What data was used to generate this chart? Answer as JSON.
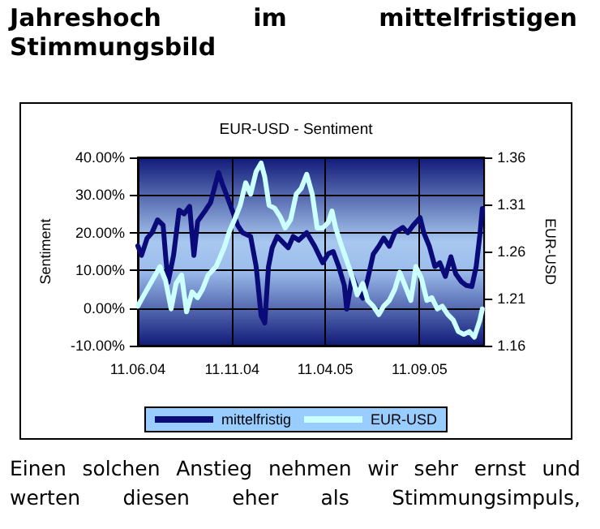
{
  "chart_data": {
    "type": "line",
    "title": "Jahreshoch im mittelfristigen Stimmungsbild",
    "subtitle": "EUR-USD - Sentiment",
    "ylabel": "Sentiment",
    "y2label": "EUR-USD",
    "annotations": [
      "Einen solchen Anstieg nehmen wir sehr ernst und werten diesen eher als Stimmungsimpuls,"
    ],
    "series": [
      {
        "name": "mittelfristig",
        "color": "#0a0a78",
        "x": [
          "2004-06-11",
          "2004-06-17",
          "2004-06-26",
          "2004-07-04",
          "2004-07-13",
          "2004-07-22",
          "2004-07-26",
          "2004-07-30",
          "2004-08-08",
          "2004-08-17",
          "2004-08-25",
          "2004-09-03",
          "2004-09-10",
          "2004-09-16",
          "2004-09-29",
          "2004-10-07",
          "2004-10-20",
          "2004-10-26",
          "2004-11-02",
          "2004-11-11",
          "2004-11-20",
          "2004-11-28",
          "2004-12-11",
          "2004-12-20",
          "2004-12-28",
          "2005-01-03",
          "2005-01-09",
          "2005-01-15",
          "2005-01-23",
          "2005-02-01",
          "2005-02-10",
          "2005-02-18",
          "2005-02-27",
          "2005-03-12",
          "2005-03-25",
          "2005-04-07",
          "2005-04-16",
          "2005-04-24",
          "2005-05-03",
          "2005-05-12",
          "2005-05-16",
          "2005-05-25",
          "2005-06-02",
          "2005-06-11",
          "2005-06-19",
          "2005-06-28",
          "2005-07-07",
          "2005-07-15",
          "2005-07-24",
          "2005-08-02",
          "2005-08-15",
          "2005-08-23",
          "2005-09-01",
          "2005-09-12",
          "2005-09-18",
          "2005-09-27",
          "2005-10-06",
          "2005-10-14",
          "2005-10-23",
          "2005-11-01",
          "2005-11-09",
          "2005-11-18",
          "2005-11-26",
          "2005-12-05",
          "2005-12-12",
          "2005-12-18",
          "2005-12-22"
        ],
        "values": [
          16.5,
          14,
          18.5,
          20,
          23.4,
          22,
          14,
          6.8,
          14,
          26,
          25,
          27,
          14,
          23,
          26,
          28,
          36,
          33,
          30,
          26,
          22,
          20,
          19,
          11,
          -2,
          -4,
          11,
          16,
          19,
          17.5,
          16,
          19,
          18,
          20,
          16.4,
          12,
          14.4,
          15,
          11,
          6,
          -0.3,
          8.4,
          5,
          2.6,
          7.7,
          14.3,
          16.4,
          18.6,
          16.4,
          20,
          21.4,
          20,
          22,
          24,
          20,
          16.4,
          11,
          12,
          8.4,
          13.6,
          9,
          7,
          6,
          5.7,
          11,
          19.4,
          26.4
        ]
      },
      {
        "name": "EUR-USD",
        "color": "#ccffff",
        "axis": "y2",
        "x": [
          "2004-06-11",
          "2004-06-21",
          "2004-07-04",
          "2004-07-17",
          "2004-07-26",
          "2004-08-04",
          "2004-08-12",
          "2004-08-21",
          "2004-08-29",
          "2004-09-07",
          "2004-09-16",
          "2004-09-24",
          "2004-10-03",
          "2004-10-16",
          "2004-10-29",
          "2004-11-07",
          "2004-11-15",
          "2004-11-24",
          "2004-12-03",
          "2004-12-11",
          "2004-12-20",
          "2004-12-28",
          "2005-01-03",
          "2005-01-10",
          "2005-01-19",
          "2005-01-28",
          "2005-02-05",
          "2005-02-14",
          "2005-02-23",
          "2005-03-03",
          "2005-03-12",
          "2005-03-21",
          "2005-03-29",
          "2005-04-07",
          "2005-04-16",
          "2005-04-22",
          "2005-04-28",
          "2005-05-07",
          "2005-05-16",
          "2005-05-24",
          "2005-06-02",
          "2005-06-11",
          "2005-06-19",
          "2005-06-28",
          "2005-07-07",
          "2005-07-15",
          "2005-07-24",
          "2005-08-02",
          "2005-08-10",
          "2005-08-19",
          "2005-08-28",
          "2005-09-05",
          "2005-09-14",
          "2005-09-23",
          "2005-10-01",
          "2005-10-10",
          "2005-10-18",
          "2005-10-27",
          "2005-11-05",
          "2005-11-13",
          "2005-11-22",
          "2005-12-01",
          "2005-12-09",
          "2005-12-18",
          "2005-12-22"
        ],
        "values": [
          1.202,
          1.214,
          1.229,
          1.244,
          1.229,
          1.199,
          1.226,
          1.235,
          1.196,
          1.217,
          1.211,
          1.22,
          1.235,
          1.244,
          1.264,
          1.282,
          1.294,
          1.309,
          1.333,
          1.321,
          1.345,
          1.354,
          1.339,
          1.309,
          1.306,
          1.297,
          1.285,
          1.294,
          1.321,
          1.327,
          1.342,
          1.321,
          1.285,
          1.285,
          1.291,
          1.303,
          1.285,
          1.267,
          1.25,
          1.235,
          1.214,
          1.226,
          1.208,
          1.202,
          1.193,
          1.202,
          1.208,
          1.22,
          1.238,
          1.223,
          1.208,
          1.244,
          1.232,
          1.208,
          1.211,
          1.199,
          1.202,
          1.193,
          1.187,
          1.175,
          1.172,
          1.175,
          1.169,
          1.187,
          1.199
        ]
      }
    ],
    "xlim": [
      "2004-06-11",
      "2005-12-25"
    ],
    "xticks": [
      {
        "value": "2004-06-11",
        "label": "11.06.04"
      },
      {
        "value": "2004-11-11",
        "label": "11.11.04"
      },
      {
        "value": "2005-04-11",
        "label": "11.04.05"
      },
      {
        "value": "2005-09-11",
        "label": "11.09.05"
      }
    ],
    "ylim": [
      -10,
      40
    ],
    "yticks": [
      {
        "value": -10,
        "label": "-10.00%"
      },
      {
        "value": 0,
        "label": "0.00%"
      },
      {
        "value": 10,
        "label": "10.00%"
      },
      {
        "value": 20,
        "label": "20.00%"
      },
      {
        "value": 30,
        "label": "30.00%"
      },
      {
        "value": 40,
        "label": "40.00%"
      }
    ],
    "y2lim": [
      1.16,
      1.36
    ],
    "y2ticks": [
      1.16,
      1.21,
      1.26,
      1.31,
      1.36
    ],
    "grid": true,
    "legend": "bottom",
    "marker": "none",
    "line_style": "solid"
  }
}
